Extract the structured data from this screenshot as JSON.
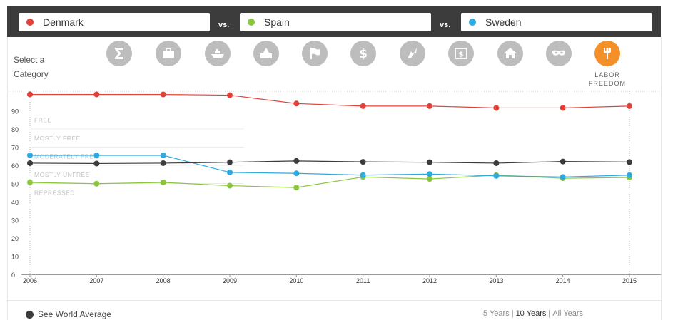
{
  "header": {
    "countries": [
      {
        "name": "Denmark",
        "color": "#e2413a"
      },
      {
        "name": "Spain",
        "color": "#8cc63f"
      },
      {
        "name": "Sweden",
        "color": "#2eaade"
      }
    ],
    "vs_label": "vs."
  },
  "categories": {
    "select_label_line1": "Select a",
    "select_label_line2": "Category",
    "icons": [
      {
        "name": "sigma-icon"
      },
      {
        "name": "briefcase-icon"
      },
      {
        "name": "ship-icon"
      },
      {
        "name": "government-building-icon"
      },
      {
        "name": "flag-icon"
      },
      {
        "name": "dollar-icon"
      },
      {
        "name": "lightning-icon"
      },
      {
        "name": "bank-icon"
      },
      {
        "name": "house-icon"
      },
      {
        "name": "mask-icon"
      },
      {
        "name": "wrench-icon"
      }
    ],
    "active_label_line1": "LABOR",
    "active_label_line2": "FREEDOM",
    "active_color": "#f4902a",
    "inactive_color": "#bdbdbd"
  },
  "chart_data": {
    "type": "line",
    "x": [
      2006,
      2007,
      2008,
      2009,
      2010,
      2011,
      2012,
      2013,
      2014,
      2015
    ],
    "ylim": [
      0,
      100
    ],
    "yticks": [
      0,
      10,
      20,
      30,
      40,
      50,
      60,
      70,
      80,
      90
    ],
    "bands": [
      {
        "label": "FREE",
        "y": 85
      },
      {
        "label": "MOSTLY FREE",
        "y": 75
      },
      {
        "label": "MODERATELY FREE",
        "y": 65
      },
      {
        "label": "MOSTLY UNFREE",
        "y": 55
      },
      {
        "label": "REPRESSED",
        "y": 45
      }
    ],
    "series": [
      {
        "name": "Denmark",
        "color": "#e2413a",
        "values": [
          99.0,
          99.0,
          99.0,
          98.6,
          94.0,
          92.6,
          92.6,
          91.6,
          91.6,
          92.6
        ]
      },
      {
        "name": "Spain",
        "color": "#8cc63f",
        "values": [
          50.6,
          49.9,
          50.6,
          48.8,
          47.8,
          53.6,
          52.5,
          54.6,
          52.9,
          53.3
        ]
      },
      {
        "name": "Sweden",
        "color": "#2eaade",
        "values": [
          65.5,
          65.5,
          65.5,
          56.1,
          55.6,
          54.6,
          55.2,
          54.2,
          53.6,
          54.6
        ]
      },
      {
        "name": "World Average",
        "color": "#3c3c3c",
        "values": [
          61.2,
          61.0,
          61.2,
          61.7,
          62.4,
          61.9,
          61.7,
          61.2,
          62.1,
          61.8
        ]
      }
    ]
  },
  "footer": {
    "world_average_label": "See World Average",
    "year_options": [
      {
        "label": "5 Years",
        "selected": false
      },
      {
        "label": "10 Years",
        "selected": true
      },
      {
        "label": "All Years",
        "selected": false
      }
    ]
  }
}
